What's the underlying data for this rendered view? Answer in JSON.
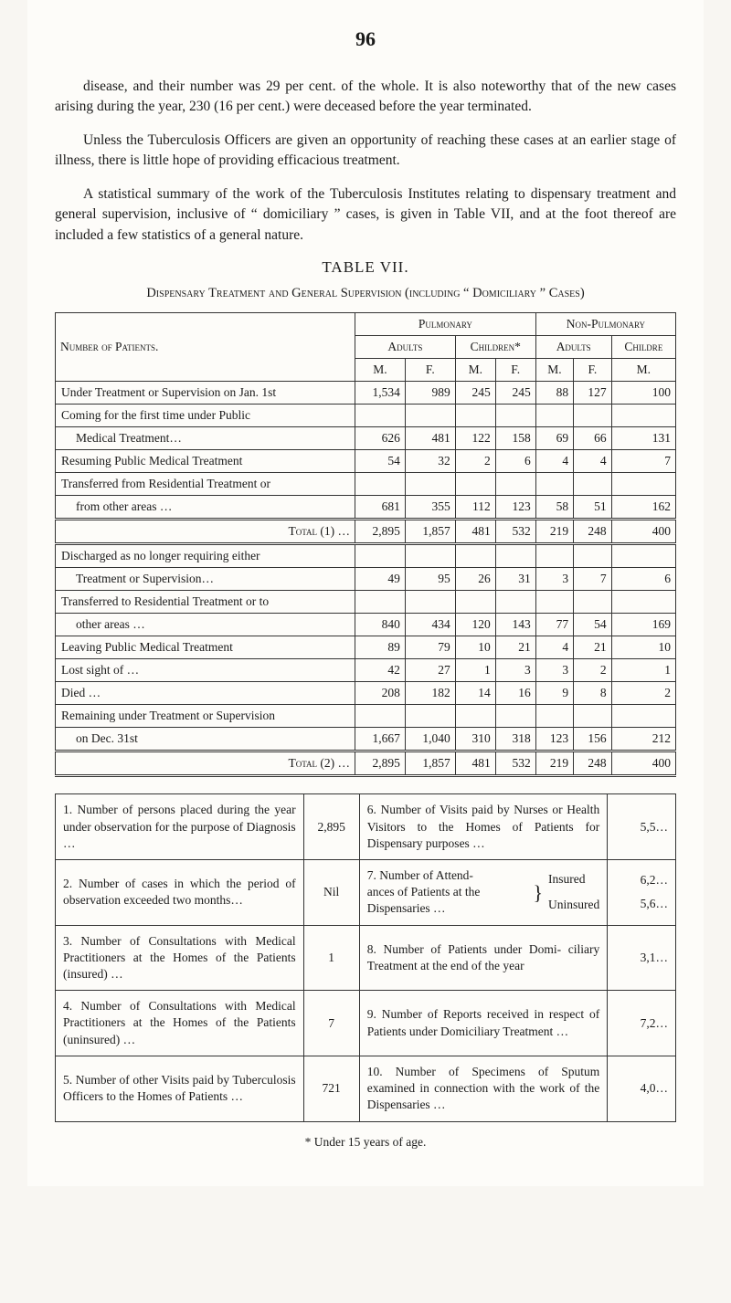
{
  "pageNumber": "96",
  "para1": "disease, and their number was 29 per cent. of the whole. It is also noteworthy that of the new cases arising during the year, 230 (16 per cent.) were deceased before the year terminated.",
  "para2": "Unless the Tuberculosis Officers are given an opportunity of reaching these cases at an earlier stage of illness, there is little hope of providing efficacious treatment.",
  "para3": "A statistical summary of the work of the Tuberculosis Institutes relating to dispensary treatment and general supervision, inclusive of “ domiciliary ” cases, is given in Table VII, and at the foot thereof are included a few statistics of a general nature.",
  "tableCaption": "TABLE VII.",
  "subCaption": "Dispensary Treatment and General Supervision (including “ Domiciliary ” Cases)",
  "mainTable": {
    "header": {
      "patients": "Number of Patients.",
      "pulmonary": "Pulmonary",
      "nonPulmonary": "Non-Pulmonary",
      "adults": "Adults",
      "children": "Children*",
      "childre": "Childre",
      "M": "M.",
      "F": "F."
    },
    "rows": [
      {
        "label": "Under Treatment or Supervision on Jan. 1st",
        "cells": [
          "1,534",
          "989",
          "245",
          "245",
          "88",
          "127",
          "100"
        ]
      },
      {
        "label": "Coming for the first time under Public",
        "noCells": true
      },
      {
        "label": "Medical Treatment…",
        "indent": true,
        "cells": [
          "626",
          "481",
          "122",
          "158",
          "69",
          "66",
          "131"
        ]
      },
      {
        "label": "Resuming Public Medical Treatment",
        "cells": [
          "54",
          "32",
          "2",
          "6",
          "4",
          "4",
          "7"
        ]
      },
      {
        "label": "Transferred from Residential Treatment or",
        "noCells": true
      },
      {
        "label": "from other areas …",
        "indent": true,
        "cells": [
          "681",
          "355",
          "112",
          "123",
          "58",
          "51",
          "162"
        ]
      }
    ],
    "total1": {
      "label": "Total (1)  …",
      "cells": [
        "2,895",
        "1,857",
        "481",
        "532",
        "219",
        "248",
        "400"
      ]
    },
    "rows2": [
      {
        "label": "Discharged as no longer requiring either",
        "noCells": true
      },
      {
        "label": "Treatment or Supervision…",
        "indent": true,
        "cells": [
          "49",
          "95",
          "26",
          "31",
          "3",
          "7",
          "6"
        ]
      },
      {
        "label": "Transferred to Residential Treatment or to",
        "noCells": true
      },
      {
        "label": "other areas …",
        "indent": true,
        "cells": [
          "840",
          "434",
          "120",
          "143",
          "77",
          "54",
          "169"
        ]
      },
      {
        "label": "Leaving Public Medical Treatment",
        "cells": [
          "89",
          "79",
          "10",
          "21",
          "4",
          "21",
          "10"
        ]
      },
      {
        "label": "Lost sight of …",
        "cells": [
          "42",
          "27",
          "1",
          "3",
          "3",
          "2",
          "1"
        ]
      },
      {
        "label": "Died …",
        "cells": [
          "208",
          "182",
          "14",
          "16",
          "9",
          "8",
          "2"
        ]
      },
      {
        "label": "Remaining under Treatment or Supervision",
        "noCells": true
      },
      {
        "label": "on Dec. 31st",
        "indent": true,
        "cells": [
          "1,667",
          "1,040",
          "310",
          "318",
          "123",
          "156",
          "212"
        ]
      }
    ],
    "total2": {
      "label": "Total (2)  …",
      "cells": [
        "2,895",
        "1,857",
        "481",
        "532",
        "219",
        "248",
        "400"
      ]
    }
  },
  "lowerTable": {
    "rows": [
      {
        "left": "1.  Number of persons placed during the year under observation for the purpose of Diagnosis …",
        "leftVal": "2,895",
        "right": "6.  Number of Visits paid by Nurses or Health Visitors to the Homes of Patients for Dispensary purposes  …",
        "rightVal": "5,5…"
      },
      {
        "left": "2.  Number of cases in which the period of observation exceeded two months…",
        "leftVal": "Nil",
        "rightA": "7.  Number of Attend-",
        "rightB": "ances of Patients at the",
        "rightC": "Dispensaries …",
        "insured": "Insured",
        "uninsured": "Uninsured",
        "rightValA": "6,2…",
        "rightValB": "5,6…"
      },
      {
        "left": "3.  Number of Consultations with Medical Practitioners at the Homes of the Patients (insured) …",
        "leftVal": "1",
        "right": "8.  Number of Patients under Domi- ciliary Treatment at the end of the year",
        "rightVal": "3,1…"
      },
      {
        "left": "4.  Number of Consultations with Medical Practitioners at the Homes of the Patients (uninsured)  …",
        "leftVal": "7",
        "right": "9.  Number of Reports received in respect of Patients under Domiciliary Treatment  …",
        "rightVal": "7,2…"
      },
      {
        "left": "5.  Number of other Visits paid by Tuberculosis Officers to the Homes of Patients …",
        "leftVal": "721",
        "right": "10.  Number of Specimens of Sputum examined in connection with the work of the Dispensaries  …",
        "rightVal": "4,0…"
      }
    ]
  },
  "footnote": "* Under 15 years of age."
}
